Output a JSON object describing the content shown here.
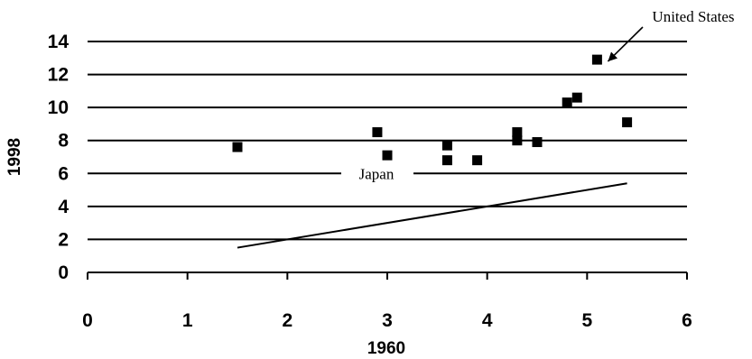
{
  "chart_data": {
    "type": "scatter",
    "title": "",
    "xlabel": "1960",
    "ylabel": "1998",
    "xlim": [
      0,
      6
    ],
    "ylim": [
      0,
      14
    ],
    "x_ticks": [
      "0",
      "1",
      "2",
      "3",
      "4",
      "5",
      "6"
    ],
    "y_ticks": [
      "0",
      "2",
      "4",
      "6",
      "8",
      "10",
      "12",
      "14"
    ],
    "grid": "horizontal",
    "legend": "none",
    "points": [
      {
        "x": 1.5,
        "y": 7.6
      },
      {
        "x": 2.9,
        "y": 8.5
      },
      {
        "x": 3.0,
        "y": 7.1
      },
      {
        "x": 3.6,
        "y": 7.7
      },
      {
        "x": 3.6,
        "y": 6.8
      },
      {
        "x": 3.9,
        "y": 6.8
      },
      {
        "x": 4.3,
        "y": 8.5
      },
      {
        "x": 4.3,
        "y": 8.0
      },
      {
        "x": 4.5,
        "y": 7.9
      },
      {
        "x": 4.8,
        "y": 10.3
      },
      {
        "x": 4.9,
        "y": 10.6
      },
      {
        "x": 5.1,
        "y": 12.9
      },
      {
        "x": 5.4,
        "y": 9.1
      }
    ],
    "line": [
      {
        "x": 1.5,
        "y": 1.5
      },
      {
        "x": 5.4,
        "y": 5.4
      }
    ],
    "annotations": [
      {
        "text": "United States",
        "x": 5.1,
        "y": 12.9
      },
      {
        "text": "Japan",
        "x": 3.0,
        "y": 6.0
      }
    ],
    "marker_color": "#000000",
    "line_color": "#000000"
  }
}
